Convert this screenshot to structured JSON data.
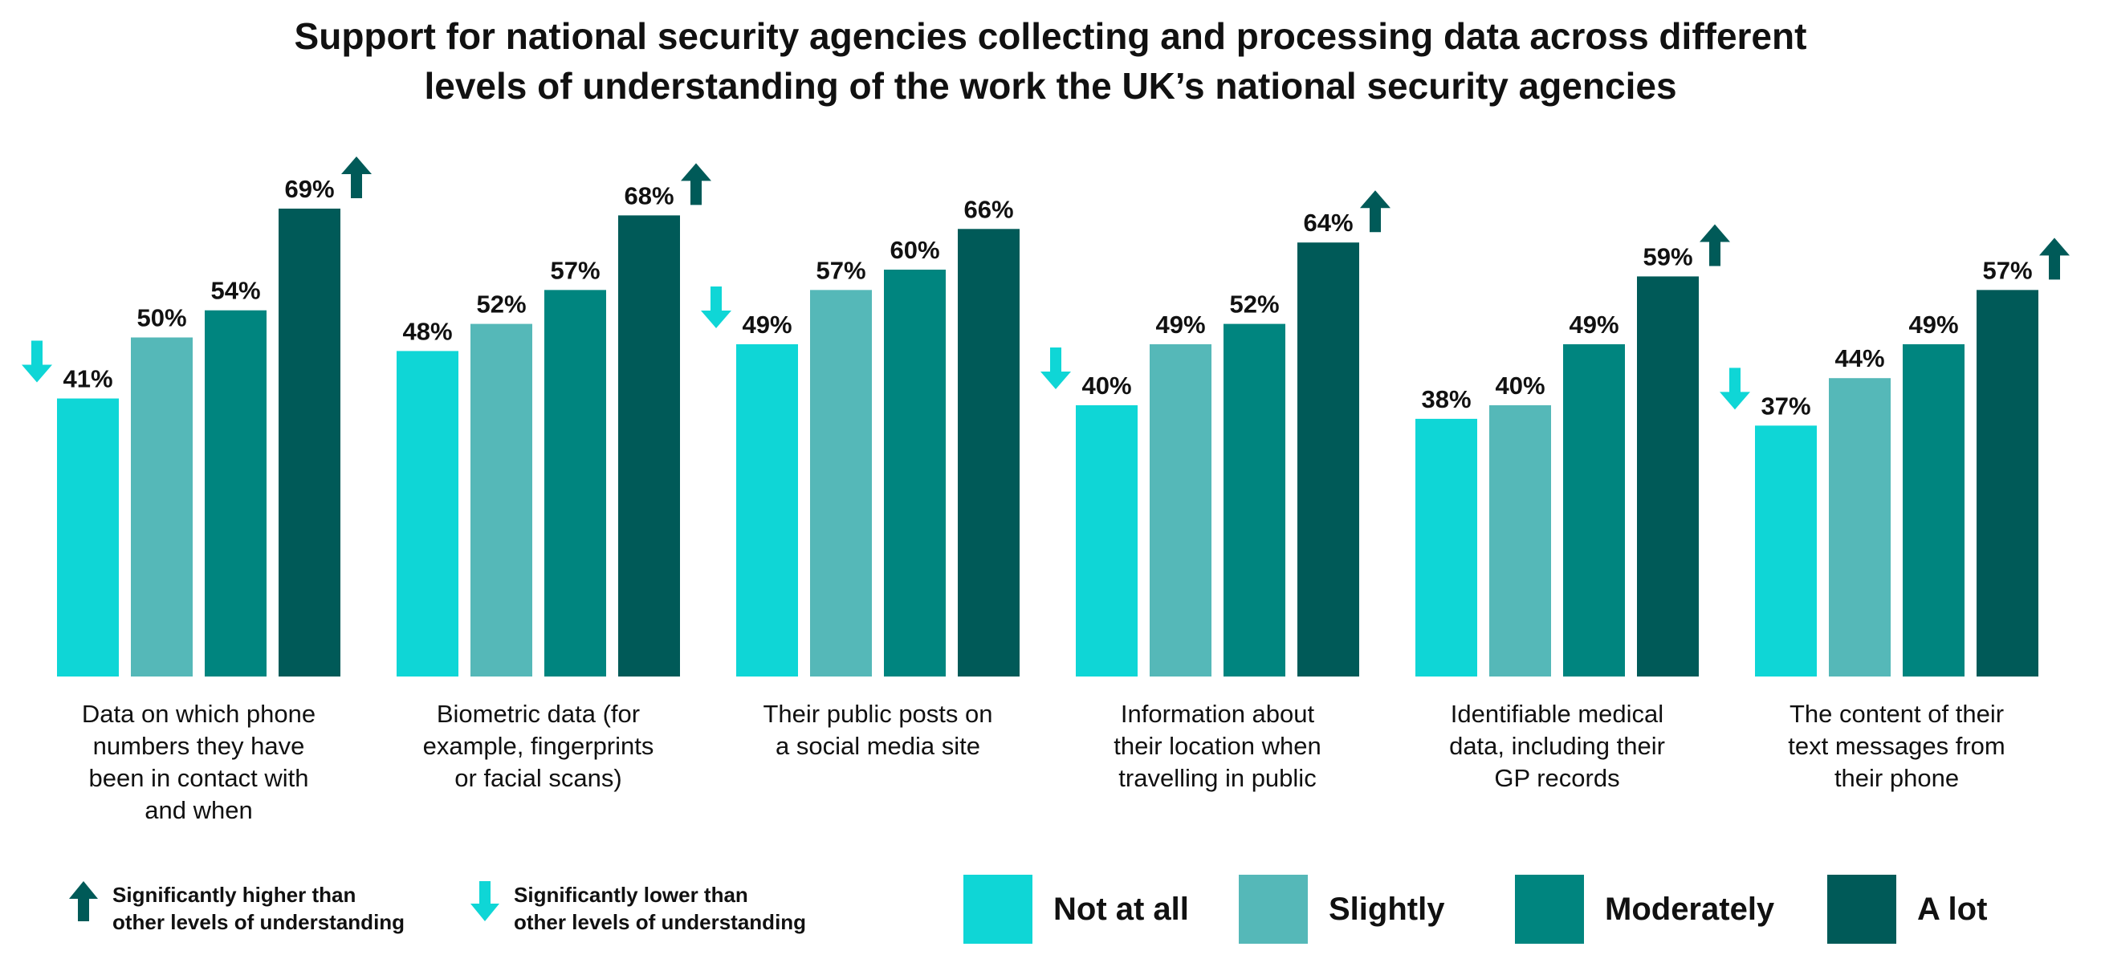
{
  "chart_data": {
    "type": "bar",
    "title": [
      "Support for national security agencies collecting and processing data across different",
      "levels of understanding of the work the UK’s national security agencies"
    ],
    "ylim": [
      0,
      80
    ],
    "categories": [
      [
        "Data on which phone",
        "numbers they have",
        "been in contact with",
        "and when"
      ],
      [
        "Biometric data (for",
        "example, fingerprints",
        "or facial scans)"
      ],
      [
        "Their public posts on",
        "a social media site"
      ],
      [
        "Information about",
        "their location when",
        "travelling in public"
      ],
      [
        "Identifiable medical",
        "data, including their",
        "GP records"
      ],
      [
        "The content of their",
        "text messages from",
        "their phone"
      ]
    ],
    "series": [
      {
        "name": "Not at all",
        "color": "#0fd6d6",
        "values": [
          41,
          48,
          49,
          40,
          38,
          37
        ]
      },
      {
        "name": "Slightly",
        "color": "#55b8b8",
        "values": [
          50,
          52,
          57,
          49,
          40,
          44
        ]
      },
      {
        "name": "Moderately",
        "color": "#00857f",
        "values": [
          54,
          57,
          60,
          52,
          49,
          49
        ]
      },
      {
        "name": "A lot",
        "color": "#005a58",
        "values": [
          69,
          68,
          66,
          64,
          59,
          57
        ]
      }
    ],
    "value_labels": [
      [
        "41%",
        "50%",
        "54%",
        "69%"
      ],
      [
        "48%",
        "52%",
        "57%",
        "68%"
      ],
      [
        "49%",
        "57%",
        "60%",
        "66%"
      ],
      [
        "40%",
        "49%",
        "52%",
        "64%"
      ],
      [
        "38%",
        "40%",
        "49%",
        "59%"
      ],
      [
        "37%",
        "44%",
        "49%",
        "57%"
      ]
    ],
    "significance": [
      [
        -1,
        0,
        0,
        1
      ],
      [
        0,
        0,
        0,
        1
      ],
      [
        -1,
        0,
        0,
        0
      ],
      [
        -1,
        0,
        0,
        1
      ],
      [
        0,
        0,
        0,
        1
      ],
      [
        -1,
        0,
        0,
        1
      ]
    ],
    "significance_colors": {
      "higher": "#005a58",
      "lower": "#0fd6d6"
    },
    "grid": false,
    "legend_position": "bottom"
  },
  "legend": {
    "higher_note": "Significantly higher than\nother levels of understanding",
    "lower_note": "Significantly lower than\nother levels of understanding",
    "higher_icon": "arrow-up-icon",
    "lower_icon": "arrow-down-icon",
    "items": [
      {
        "label": "Not at all",
        "color": "#0fd6d6"
      },
      {
        "label": "Slightly",
        "color": "#55b8b8"
      },
      {
        "label": "Moderately",
        "color": "#00857f"
      },
      {
        "label": "A lot",
        "color": "#005a58"
      }
    ]
  }
}
